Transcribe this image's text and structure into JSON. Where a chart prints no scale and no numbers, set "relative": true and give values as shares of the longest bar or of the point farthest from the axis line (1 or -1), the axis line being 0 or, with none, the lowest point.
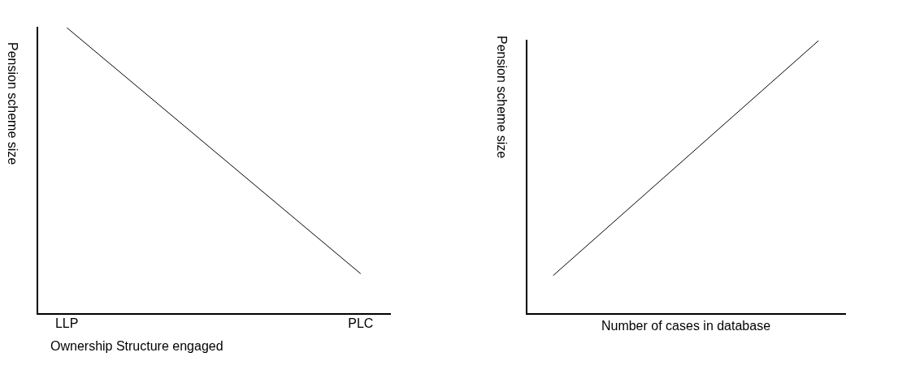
{
  "chart_data": [
    {
      "type": "line",
      "categories": [
        "LLP",
        "PLC"
      ],
      "xlabel": "Ownership Structure engaged",
      "ylabel": "Pension scheme size",
      "relative": true,
      "marker": "none",
      "grid": false,
      "legend": false,
      "series": [
        {
          "color": "#000000",
          "values": [
            1,
            0.14
          ]
        }
      ]
    },
    {
      "type": "line",
      "categories": [
        null,
        null
      ],
      "xlabel": "Number of cases in database",
      "ylabel": "Pension scheme size",
      "relative": true,
      "marker": "none",
      "grid": false,
      "legend": false,
      "series": [
        {
          "color": "#000000",
          "values": [
            0.14,
            1
          ]
        }
      ]
    }
  ]
}
